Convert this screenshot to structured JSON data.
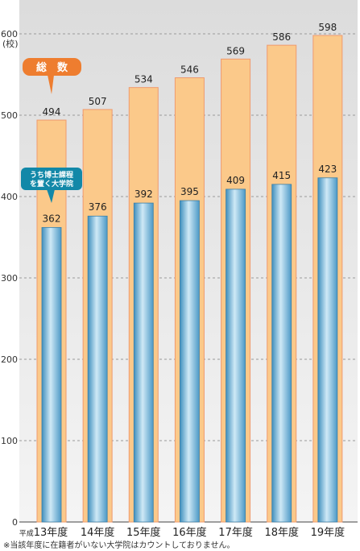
{
  "chart_data": {
    "type": "bar",
    "categories": [
      "13年度",
      "14年度",
      "15年度",
      "16年度",
      "17年度",
      "18年度",
      "19年度"
    ],
    "category_prefix": "平成",
    "y_unit": "(校)",
    "ylim": [
      0,
      600
    ],
    "yticks": [
      0,
      100,
      200,
      300,
      400,
      500,
      600
    ],
    "grid": true,
    "series": [
      {
        "name": "総　数",
        "values": [
          494,
          507,
          534,
          546,
          569,
          586,
          598
        ],
        "color": "#fbc98a",
        "stroke": "#ef9a6e"
      },
      {
        "name": "うち博士課程を置く大学院",
        "name_lines": [
          "うち博士課程",
          "を置く大学院"
        ],
        "values": [
          362,
          376,
          392,
          395,
          409,
          415,
          423
        ],
        "color": "#6fb5d8"
      }
    ],
    "callout_colors": {
      "total": "#ee7d2f",
      "doctoral": "#1288a8"
    },
    "footnote": "※当該年度に在籍者がいない大学院はカウントしておりません。"
  }
}
